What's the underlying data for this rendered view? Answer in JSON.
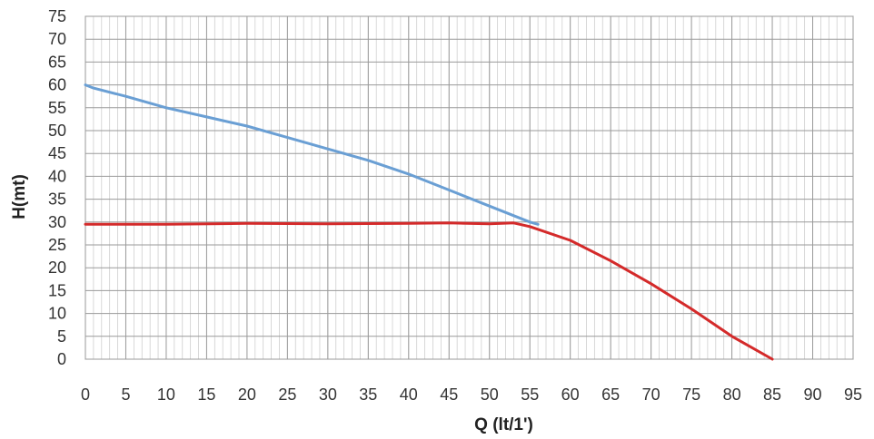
{
  "chart_data": {
    "type": "line",
    "xlabel": "Q (lt/1')",
    "ylabel": "H(mt)",
    "xlim": [
      0,
      95
    ],
    "ylim": [
      0,
      75
    ],
    "x_major_ticks": [
      0,
      5,
      10,
      15,
      20,
      25,
      30,
      35,
      40,
      45,
      50,
      55,
      60,
      65,
      70,
      75,
      80,
      85,
      90,
      95
    ],
    "y_major_ticks": [
      0,
      5,
      10,
      15,
      20,
      25,
      30,
      35,
      40,
      45,
      50,
      55,
      60,
      65,
      70,
      75
    ],
    "x_minor_step": 1,
    "grid": true,
    "series": [
      {
        "color": "#6a9fd4",
        "x": [
          0,
          1,
          5,
          10,
          15,
          20,
          25,
          30,
          35,
          40,
          45,
          50,
          55,
          56
        ],
        "y": [
          60,
          59.3,
          57.5,
          55,
          53,
          51,
          48.5,
          46,
          43.5,
          40.5,
          37,
          33.5,
          30,
          29.5
        ]
      },
      {
        "color": "#d42a2a",
        "x": [
          0,
          10,
          20,
          30,
          40,
          45,
          50,
          53,
          55,
          60,
          65,
          70,
          75,
          80,
          85
        ],
        "y": [
          29.5,
          29.5,
          29.7,
          29.6,
          29.7,
          29.8,
          29.6,
          29.8,
          29,
          26,
          21.5,
          16.5,
          11,
          5,
          0
        ]
      }
    ]
  }
}
